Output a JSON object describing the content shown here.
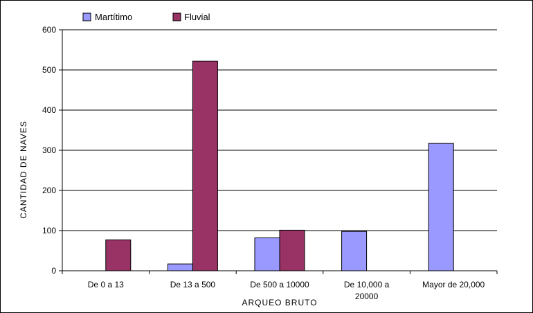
{
  "chart_data": {
    "type": "bar",
    "categories": [
      [
        "De 0 a 13"
      ],
      [
        "De 13 a 500"
      ],
      [
        "De 500 a 10000"
      ],
      [
        "De 10,000 a",
        "20000"
      ],
      [
        "Mayor de 20,000"
      ]
    ],
    "series": [
      {
        "name": "Martítimo",
        "values": [
          0,
          17,
          82,
          98,
          317
        ],
        "color": "#9999FF"
      },
      {
        "name": "Fluvial",
        "values": [
          77,
          522,
          101,
          0,
          0
        ],
        "color": "#993366"
      }
    ],
    "xlabel": "ARQUEO BRUTO",
    "ylabel": "CANTIDAD DE NAVES",
    "ylim": [
      0,
      600
    ],
    "yticks": [
      0,
      100,
      200,
      300,
      400,
      500,
      600
    ],
    "grid": true,
    "legend_position": "top-left"
  }
}
